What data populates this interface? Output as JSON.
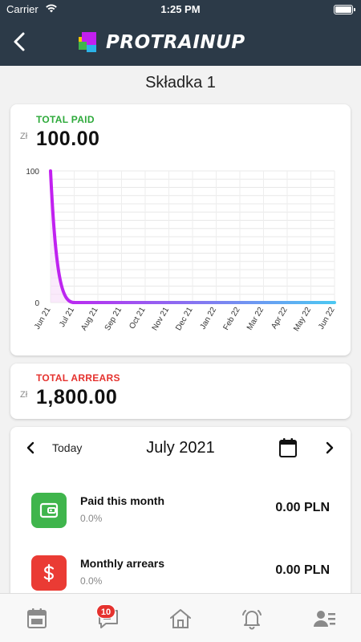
{
  "status_bar": {
    "carrier": "Carrier",
    "time": "1:25 PM"
  },
  "header": {
    "logo_text": "PROTRAINUP"
  },
  "page": {
    "title": "Składka 1"
  },
  "total_paid": {
    "label": "TOTAL PAID",
    "currency": "Zł",
    "amount": "100.00"
  },
  "total_arrears": {
    "label": "TOTAL ARREARS",
    "currency": "Zł",
    "amount": "1,800.00"
  },
  "chart_data": {
    "type": "line",
    "categories": [
      "Jun 21",
      "Jul 21",
      "Aug 21",
      "Sep 21",
      "Oct 21",
      "Nov 21",
      "Dec 21",
      "Jan 22",
      "Feb 22",
      "Mar 22",
      "Apr 22",
      "May 22",
      "Jun 22"
    ],
    "values": [
      100,
      0,
      0,
      0,
      0,
      0,
      0,
      0,
      0,
      0,
      0,
      0,
      0
    ],
    "y_ticks": [
      "100",
      "0"
    ],
    "ylim": [
      0,
      100
    ],
    "grid": true,
    "colors": {
      "start": "#c21ff0",
      "end": "#4cc8f2",
      "fill": "#f7dcf9"
    }
  },
  "month_nav": {
    "today_label": "Today",
    "month_title": "July 2021"
  },
  "month_items": [
    {
      "title": "Paid this month",
      "subtitle": "0.0%",
      "amount": "0.00 PLN",
      "icon": "wallet-icon",
      "color": "#3fb54c"
    },
    {
      "title": "Monthly arrears",
      "subtitle": "0.0%",
      "amount": "0.00 PLN",
      "icon": "dollar-icon",
      "color": "#ea3b34"
    }
  ],
  "tab_bar": {
    "tabs": [
      "calendar-icon",
      "chat-icon",
      "home-icon",
      "bell-icon",
      "contacts-icon"
    ],
    "chat_badge": "10"
  }
}
